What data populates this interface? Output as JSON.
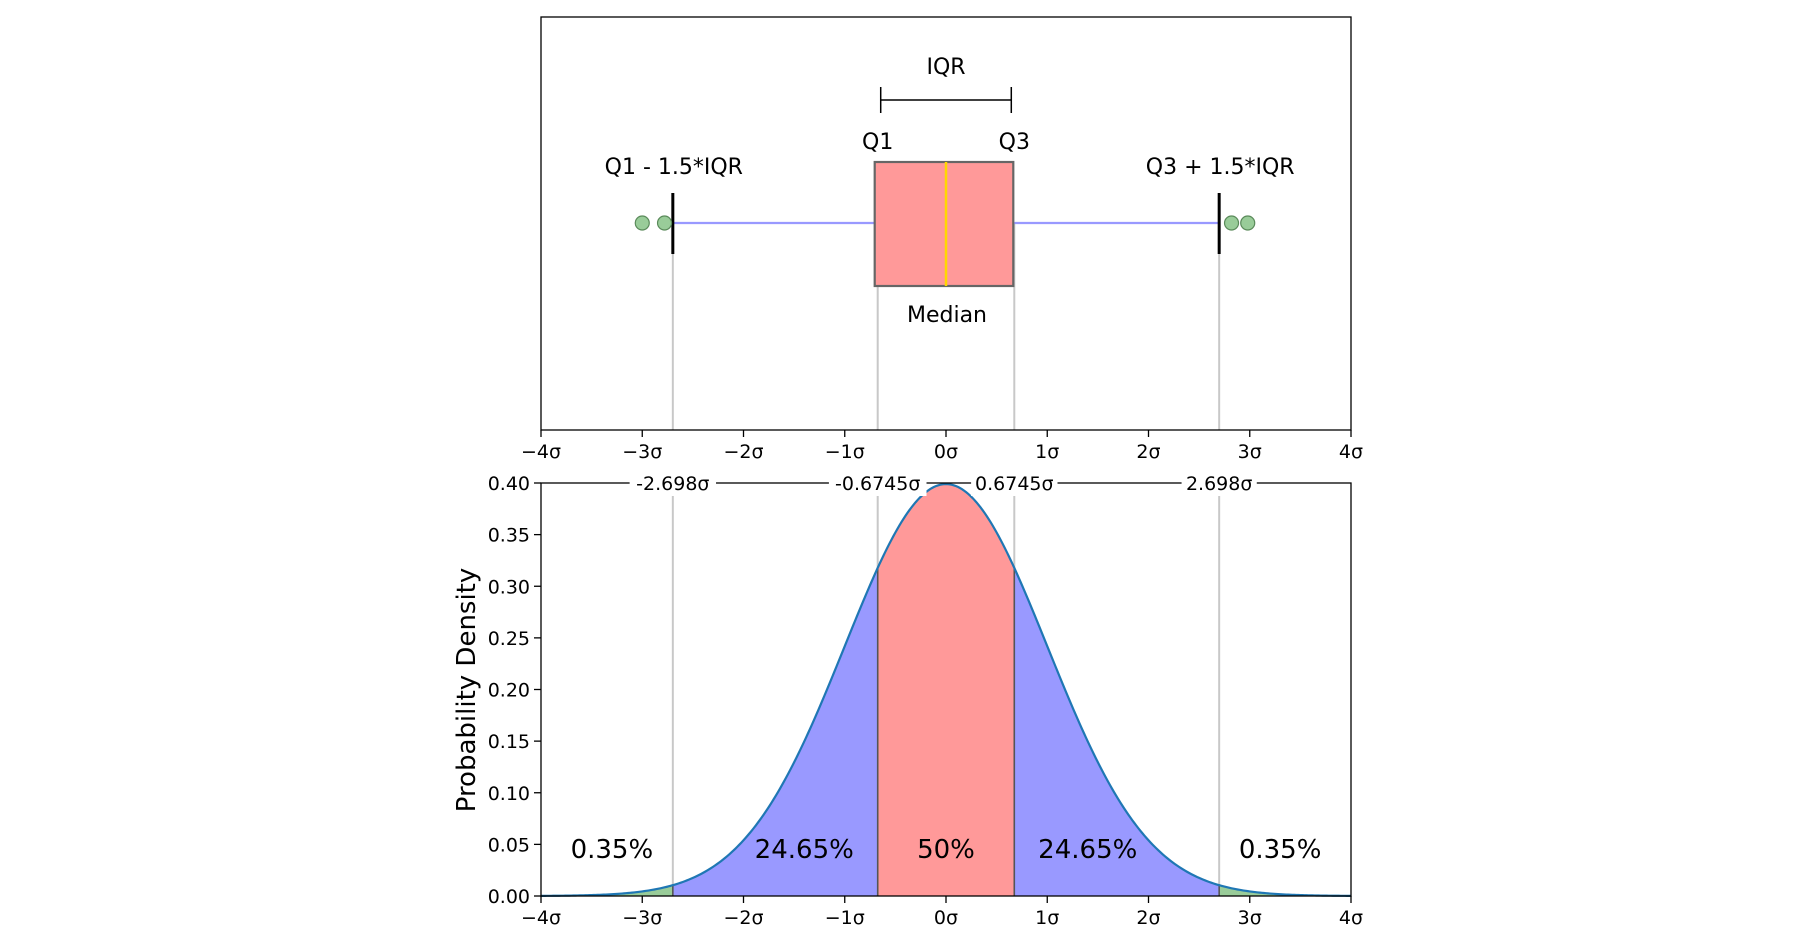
{
  "chart_data": [
    {
      "type": "box",
      "xlim": [
        -4,
        4
      ],
      "xticks": [
        "−4σ",
        "−3σ",
        "−2σ",
        "−1σ",
        "0σ",
        "1σ",
        "2σ",
        "3σ",
        "4σ"
      ],
      "box": {
        "q1": -0.6745,
        "median": 0.0,
        "q3": 0.6745,
        "whisker_low": -2.698,
        "whisker_high": 2.698
      },
      "outliers": [
        -3.0,
        -2.78,
        2.82,
        2.98
      ],
      "labels": {
        "iqr": "IQR",
        "q1": "Q1",
        "q3": "Q3",
        "lower_fence": "Q1 - 1.5*IQR",
        "upper_fence": "Q3 + 1.5*IQR",
        "median": "Median"
      },
      "colors": {
        "box": "#ff9999",
        "median": "#ffd700",
        "whisker": "#9999ff",
        "outlier": "#99cc99"
      }
    },
    {
      "type": "area",
      "xlim": [
        -4,
        4
      ],
      "ylim": [
        0,
        0.4
      ],
      "ylabel": "Probability Density",
      "xticks": [
        "−4σ",
        "−3σ",
        "−2σ",
        "−1σ",
        "0σ",
        "1σ",
        "2σ",
        "3σ",
        "4σ"
      ],
      "yticks": [
        "0.00",
        "0.05",
        "0.10",
        "0.15",
        "0.20",
        "0.25",
        "0.30",
        "0.35",
        "0.40"
      ],
      "boundaries": [
        -2.698,
        -0.6745,
        0.6745,
        2.698
      ],
      "boundary_labels": [
        "-2.698σ",
        "-0.6745σ",
        "0.6745σ",
        "2.698σ"
      ],
      "regions": [
        {
          "from": -4,
          "to": -2.698,
          "label": "0.35%",
          "color": "#99cc99"
        },
        {
          "from": -2.698,
          "to": -0.6745,
          "label": "24.65%",
          "color": "#9999ff"
        },
        {
          "from": -0.6745,
          "to": 0.6745,
          "label": "50%",
          "color": "#ff9999"
        },
        {
          "from": 0.6745,
          "to": 2.698,
          "label": "24.65%",
          "color": "#9999ff"
        },
        {
          "from": 2.698,
          "to": 4,
          "label": "0.35%",
          "color": "#99cc99"
        }
      ],
      "curve_color": "#1f77b4"
    }
  ]
}
